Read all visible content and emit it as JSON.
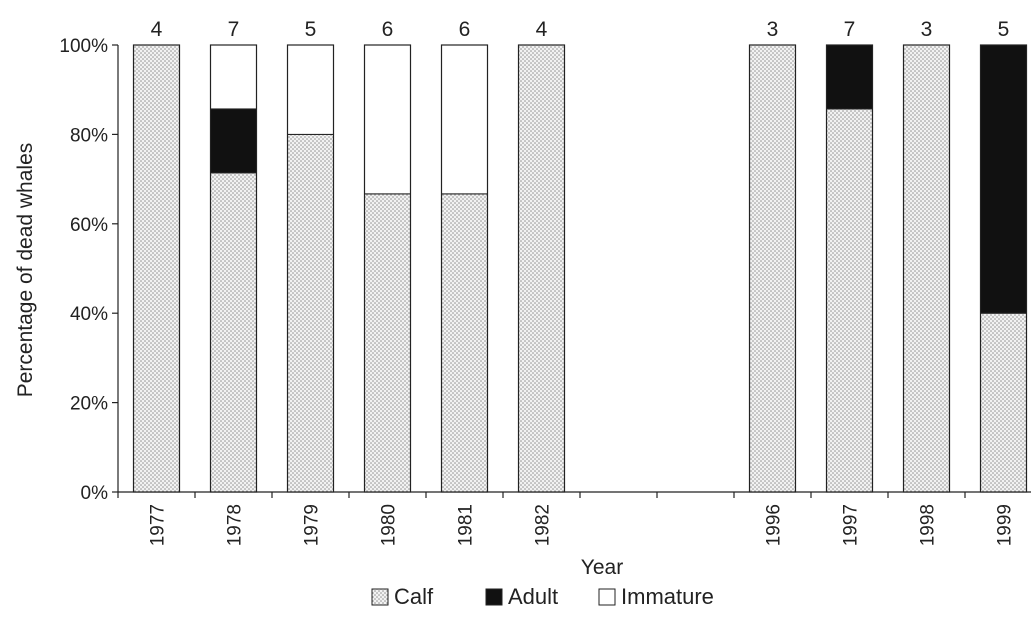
{
  "chart_data": {
    "type": "bar",
    "stacked": true,
    "percent_stacked": true,
    "xlabel": "Year",
    "ylabel": "Percentage of dead whales",
    "ylim": [
      0,
      100
    ],
    "yticks": [
      "0%",
      "20%",
      "40%",
      "60%",
      "80%",
      "100%"
    ],
    "categories": [
      "1977",
      "1978",
      "1979",
      "1980",
      "1981",
      "1982",
      "",
      "",
      "1996",
      "1997",
      "1998",
      "1999"
    ],
    "counts": [
      "4",
      "7",
      "5",
      "6",
      "6",
      "4",
      "",
      "",
      "3",
      "7",
      "3",
      "5"
    ],
    "series": [
      {
        "name": "Calf",
        "color": "#e6e6e6",
        "pattern": "dotted",
        "values": [
          100,
          71.4,
          80,
          66.7,
          66.7,
          100,
          0,
          0,
          100,
          85.7,
          100,
          40
        ]
      },
      {
        "name": "Adult",
        "color": "#111111",
        "pattern": "solid",
        "values": [
          0,
          14.3,
          0,
          0,
          0,
          0,
          0,
          0,
          0,
          14.3,
          0,
          60
        ]
      },
      {
        "name": "Immature",
        "color": "#ffffff",
        "pattern": "none",
        "values": [
          0,
          14.3,
          20,
          33.3,
          33.3,
          0,
          0,
          0,
          0,
          0,
          0,
          0
        ]
      }
    ],
    "grid": false,
    "legend_position": "bottom"
  }
}
